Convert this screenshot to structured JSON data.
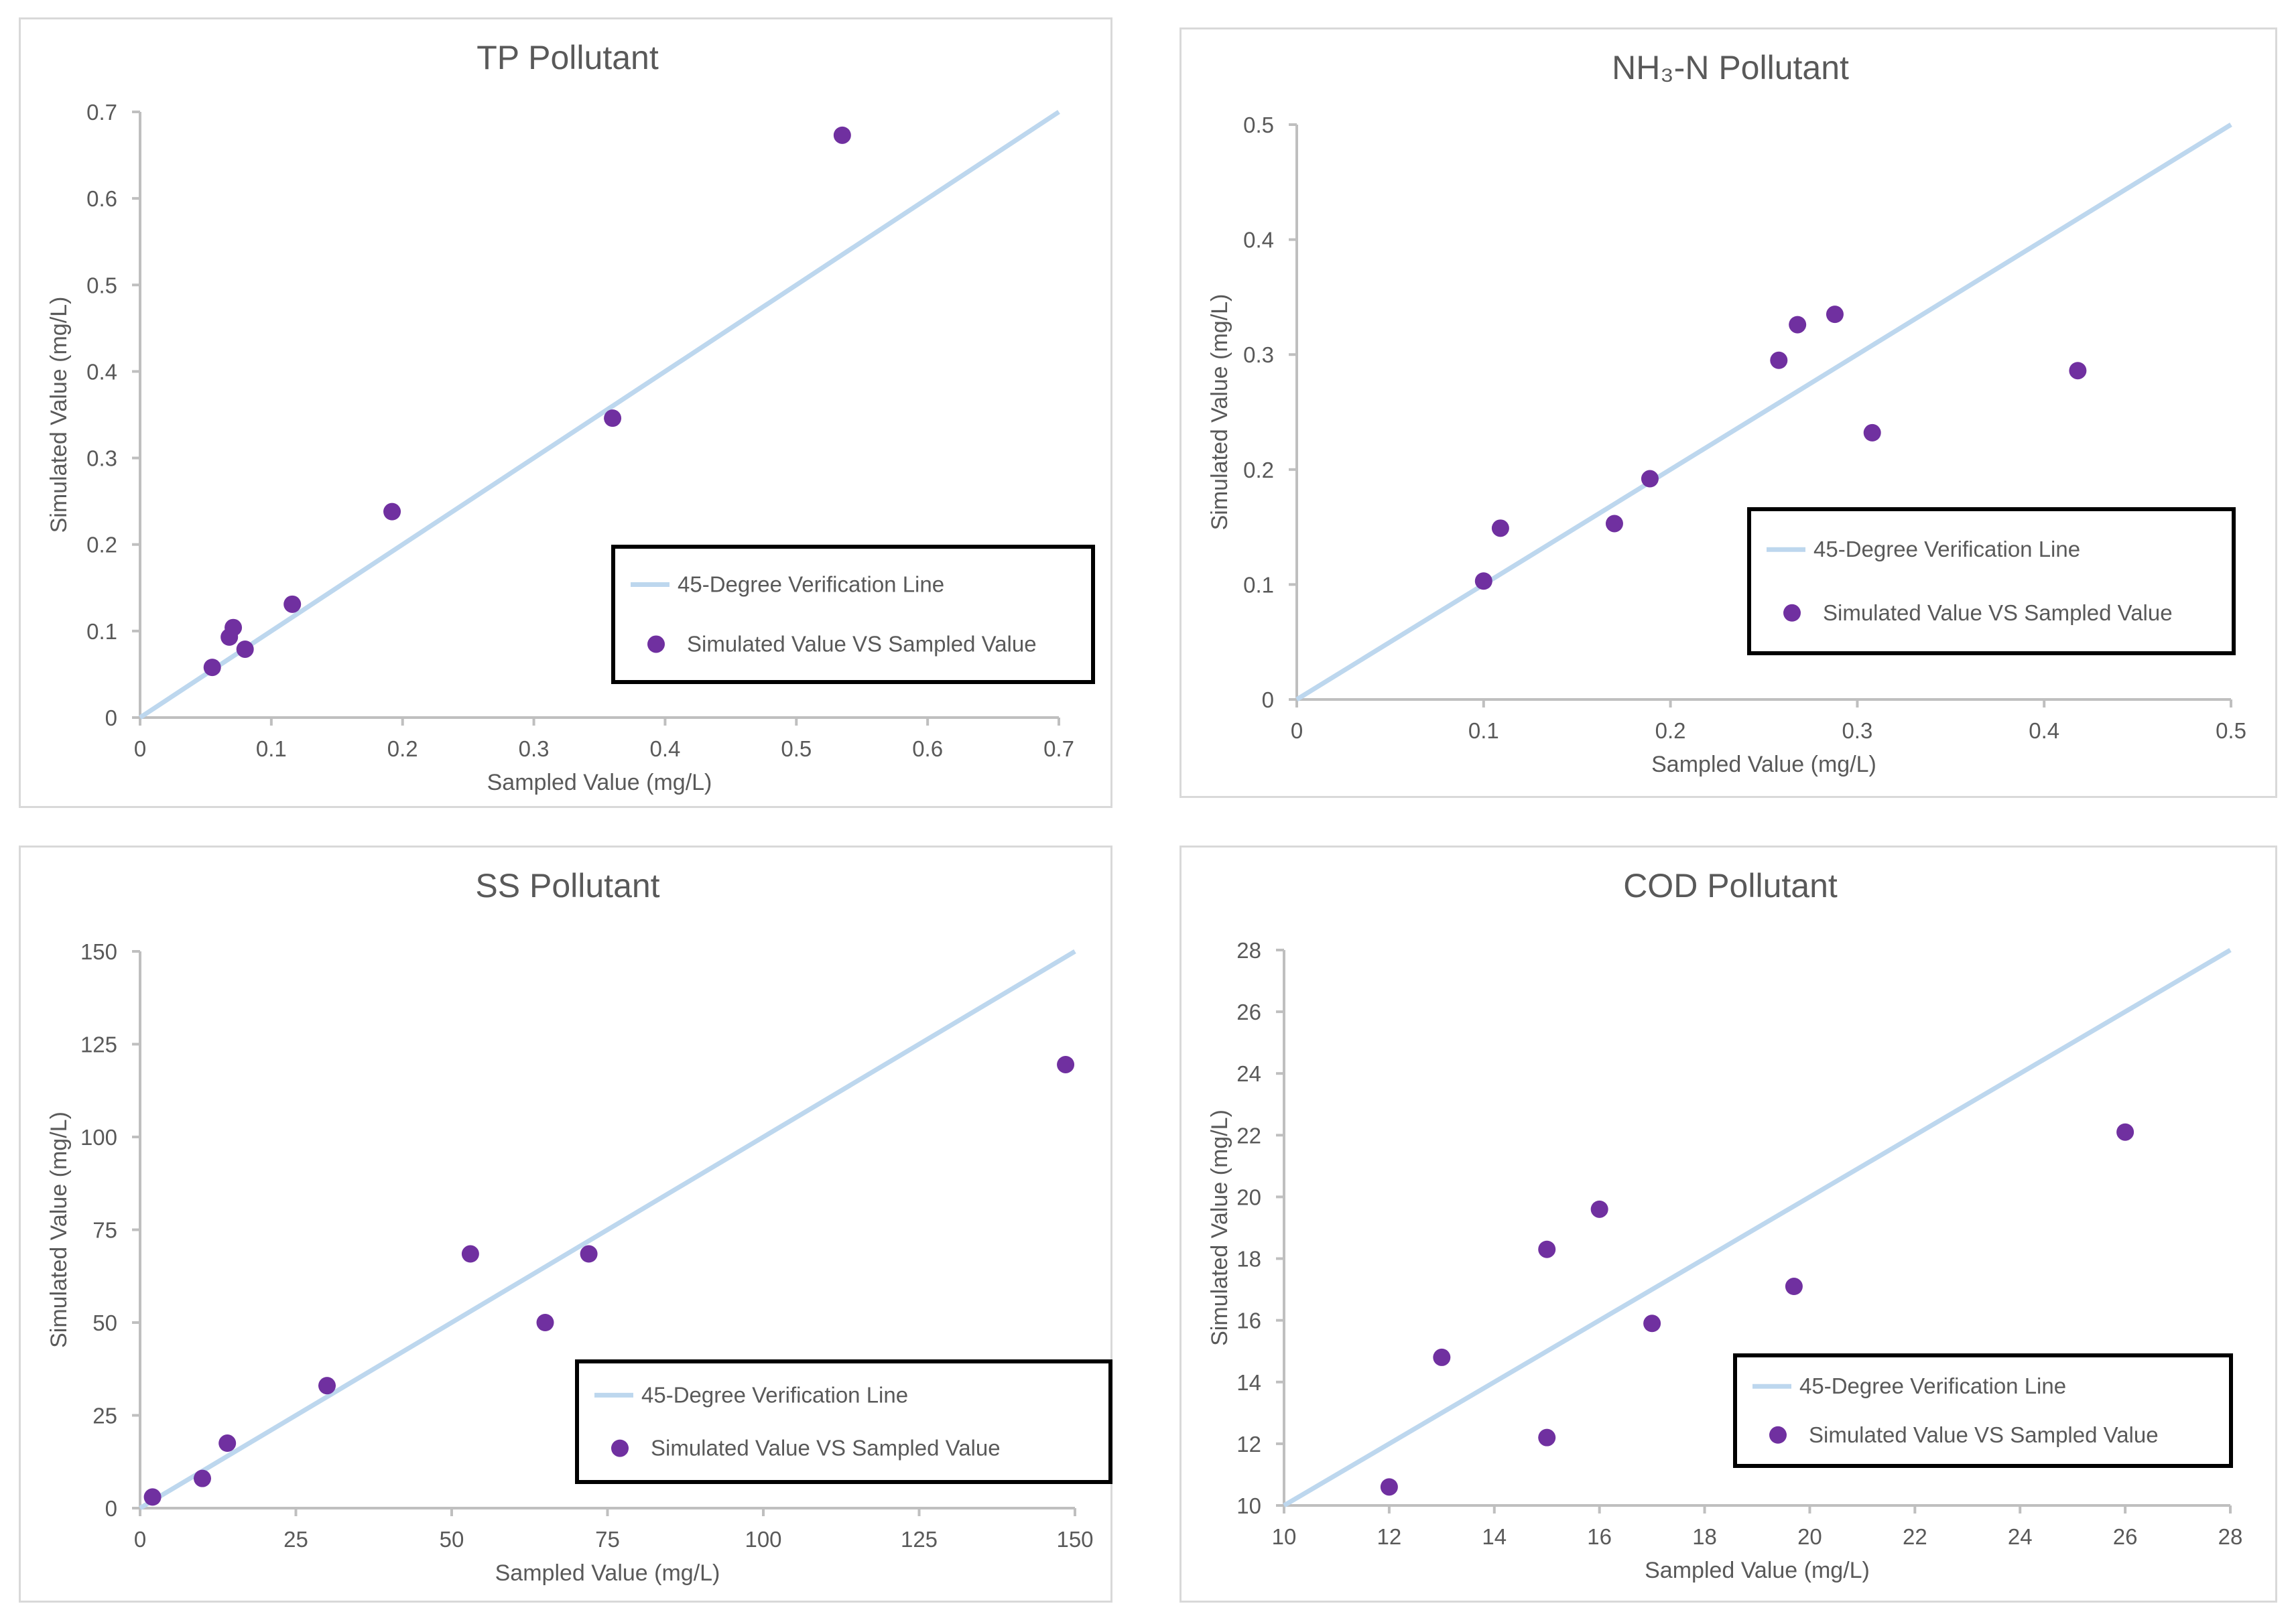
{
  "chart_data": [
    {
      "type": "scatter",
      "title": "TP Pollutant",
      "xlabel": "Sampled Value (mg/L)",
      "ylabel": "Simulated Value (mg/L)",
      "xlim": [
        0,
        0.7
      ],
      "ylim": [
        0,
        0.7
      ],
      "xticks": [
        "0",
        "0.1",
        "0.2",
        "0.3",
        "0.4",
        "0.5",
        "0.6",
        "0.7"
      ],
      "yticks": [
        "0",
        "0.1",
        "0.2",
        "0.3",
        "0.4",
        "0.5",
        "0.6",
        "0.7"
      ],
      "grid": false,
      "legend_position": "bottom-right",
      "legend": [
        "45-Degree Verification Line",
        "Simulated Value VS Sampled Value"
      ],
      "line": {
        "name": "45-Degree Verification Line",
        "x": [
          0,
          0.7
        ],
        "y": [
          0,
          0.7
        ]
      },
      "series": [
        {
          "name": "Simulated Value VS Sampled Value",
          "x": [
            0.055,
            0.068,
            0.071,
            0.08,
            0.116,
            0.192,
            0.36,
            0.535
          ],
          "y": [
            0.058,
            0.093,
            0.104,
            0.079,
            0.131,
            0.238,
            0.346,
            0.673
          ]
        }
      ]
    },
    {
      "type": "scatter",
      "title": "NH₃-N Pollutant",
      "xlabel": "Sampled Value  (mg/L)",
      "ylabel": "Simulated Value (mg/L)",
      "xlim": [
        0,
        0.5
      ],
      "ylim": [
        0,
        0.5
      ],
      "xticks": [
        "0",
        "0.1",
        "0.2",
        "0.3",
        "0.4",
        "0.5"
      ],
      "yticks": [
        "0",
        "0.1",
        "0.2",
        "0.3",
        "0.4",
        "0.5"
      ],
      "grid": false,
      "legend_position": "bottom-right",
      "legend": [
        "45-Degree Verification Line",
        "Simulated Value VS Sampled Value"
      ],
      "line": {
        "name": "45-Degree Verification Line",
        "x": [
          0,
          0.5
        ],
        "y": [
          0,
          0.5
        ]
      },
      "series": [
        {
          "name": "Simulated Value VS Sampled Value",
          "x": [
            0.1,
            0.109,
            0.17,
            0.189,
            0.258,
            0.268,
            0.288,
            0.308,
            0.418
          ],
          "y": [
            0.103,
            0.149,
            0.153,
            0.192,
            0.295,
            0.326,
            0.335,
            0.232,
            0.286
          ]
        }
      ]
    },
    {
      "type": "scatter",
      "title": "SS Pollutant",
      "xlabel": "Sampled Value  (mg/L)",
      "ylabel": "Simulated Value  (mg/L)",
      "xlim": [
        0,
        150
      ],
      "ylim": [
        0,
        150
      ],
      "xticks": [
        "0",
        "25",
        "50",
        "75",
        "100",
        "125",
        "150"
      ],
      "yticks": [
        "0",
        "25",
        "50",
        "75",
        "100",
        "125",
        "150"
      ],
      "grid": false,
      "legend_position": "bottom-right",
      "legend": [
        "45-Degree Verification Line",
        "Simulated Value VS Sampled Value"
      ],
      "line": {
        "name": "45-Degree Verification Line",
        "x": [
          0,
          150
        ],
        "y": [
          0,
          150
        ]
      },
      "series": [
        {
          "name": "Simulated Value VS Sampled Value",
          "x": [
            2,
            10,
            14,
            30,
            53,
            65,
            72,
            148.5
          ],
          "y": [
            3,
            8,
            17.5,
            33,
            68.5,
            50,
            68.5,
            119.5
          ]
        }
      ]
    },
    {
      "type": "scatter",
      "title": "COD Pollutant",
      "xlabel": "Sampled Value  (mg/L)",
      "ylabel": "Simulated Value  (mg/L)",
      "xlim": [
        10,
        28
      ],
      "ylim": [
        10,
        28
      ],
      "xticks": [
        "10",
        "12",
        "14",
        "16",
        "18",
        "20",
        "22",
        "24",
        "26",
        "28"
      ],
      "yticks": [
        "10",
        "12",
        "14",
        "16",
        "18",
        "20",
        "22",
        "24",
        "26",
        "28"
      ],
      "grid": false,
      "legend_position": "bottom-right",
      "legend": [
        "45-Degree Verification Line",
        "Simulated Value VS Sampled Value"
      ],
      "line": {
        "name": "45-Degree Verification Line",
        "x": [
          10,
          28
        ],
        "y": [
          10,
          28
        ]
      },
      "series": [
        {
          "name": "Simulated Value VS Sampled Value",
          "x": [
            12,
            13,
            15,
            15,
            16,
            17,
            19.7,
            26
          ],
          "y": [
            10.6,
            14.8,
            18.3,
            12.2,
            19.6,
            15.9,
            17.1,
            22.1
          ]
        }
      ]
    }
  ],
  "colors": {
    "line": "#bdd7ee",
    "marker": "#7030a0",
    "axis": "#bfbfbf",
    "text": "#595959",
    "legend_border": "#000000",
    "panel_border": "#d9d9d9"
  }
}
